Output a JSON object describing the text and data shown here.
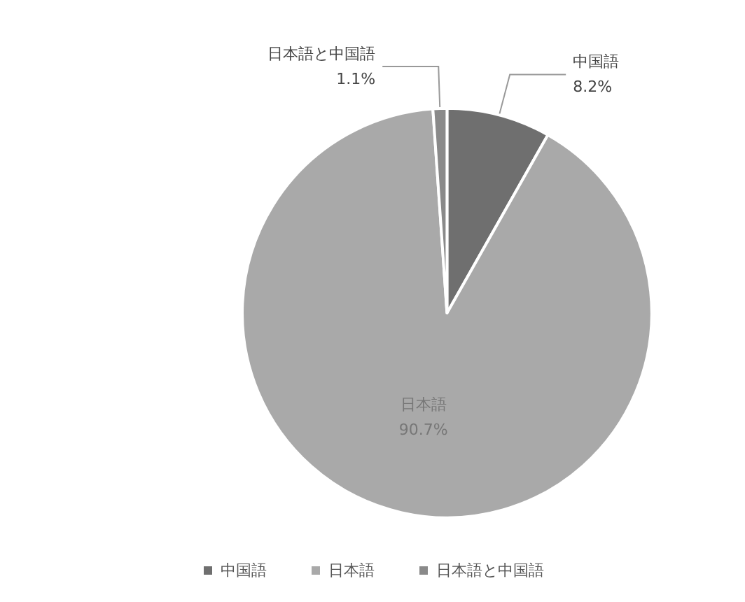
{
  "chart_data": {
    "type": "pie",
    "categories": [
      "中国語",
      "日本語",
      "日本語と中国語"
    ],
    "values": [
      8.2,
      90.7,
      1.1
    ],
    "value_labels": [
      "8.2%",
      "90.7%",
      "1.1%"
    ],
    "colors": [
      "#6f6f6f",
      "#a9a9a9",
      "#8a8a8a"
    ],
    "legend": "bottom"
  }
}
